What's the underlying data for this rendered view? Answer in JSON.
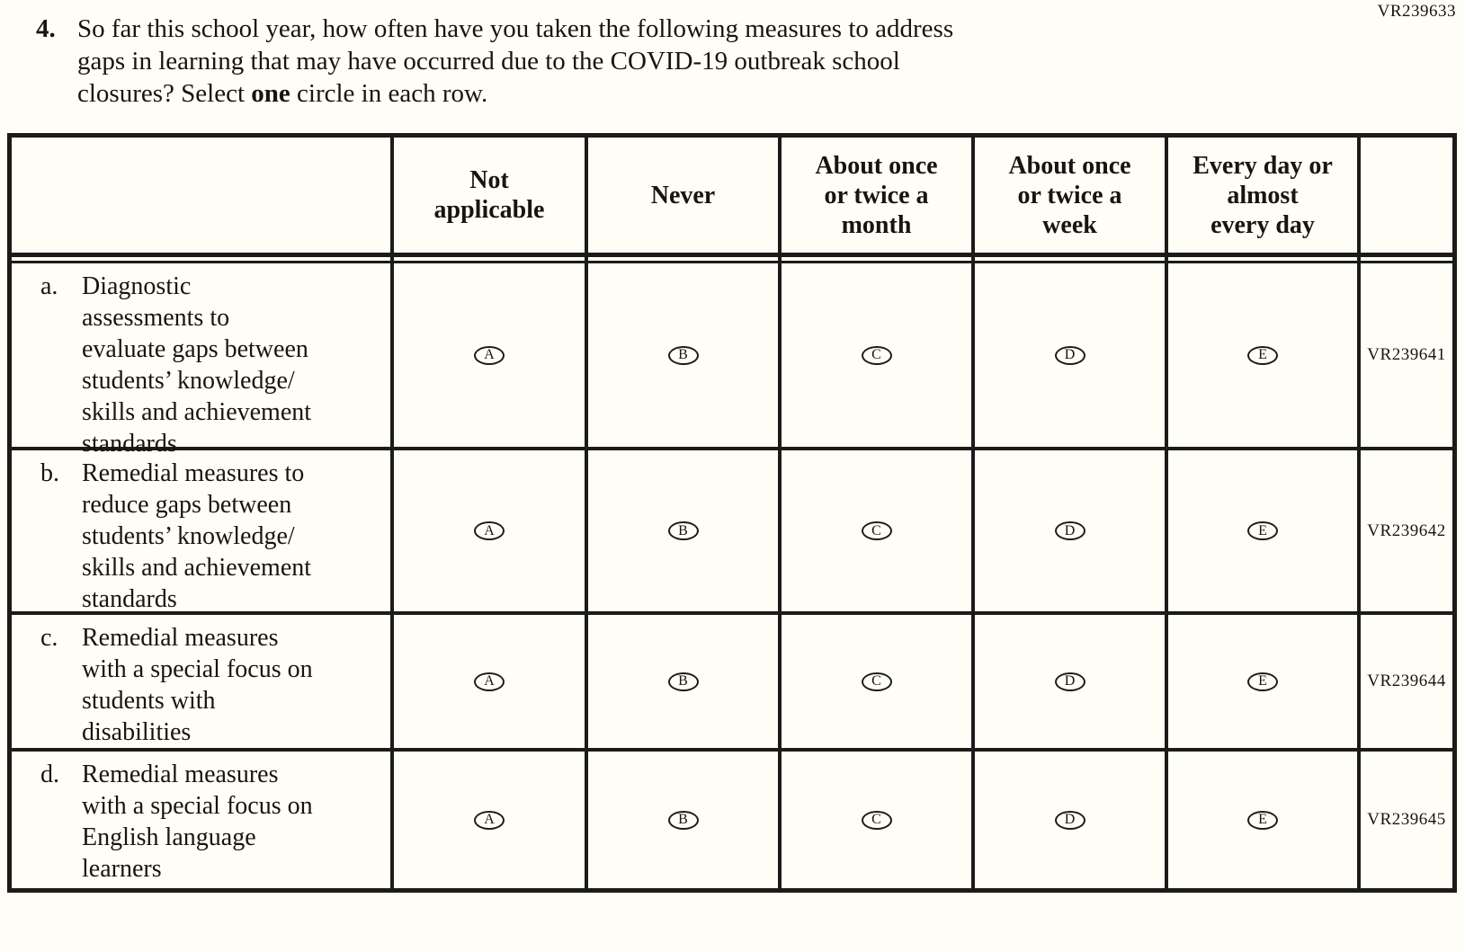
{
  "page": {
    "background_color": "#fffef6",
    "text_color": "#181411",
    "line_color": "#1c1b19"
  },
  "form_code": "VR239633",
  "question": {
    "number": "4.",
    "text_before": "So far this school year, how often have you taken the following measures to address\ngaps in learning that may have occurred due to the COVID-19 outbreak school\nclosures? Select ",
    "bold_word": "one",
    "text_after": " circle in each row."
  },
  "table": {
    "columns": [
      "Not\napplicable",
      "Never",
      "About once\nor twice a\nmonth",
      "About once\nor twice a\nweek",
      "Every day or\nalmost\nevery day"
    ],
    "options": [
      "A",
      "B",
      "C",
      "D",
      "E"
    ],
    "rows": [
      {
        "letter": "a.",
        "text": "Diagnostic\nassessments to\nevaluate gaps between\nstudents’ knowledge/\nskills and achievement\nstandards",
        "code": "VR239641"
      },
      {
        "letter": "b.",
        "text": "Remedial measures to\nreduce gaps between\nstudents’ knowledge/\nskills and achievement\nstandards",
        "code": "VR239642"
      },
      {
        "letter": "c.",
        "text": "Remedial measures\nwith a special focus on\nstudents with\ndisabilities",
        "code": "VR239644"
      },
      {
        "letter": "d.",
        "text": "Remedial measures\nwith a special focus on\nEnglish language\nlearners",
        "code": "VR239645"
      }
    ]
  }
}
